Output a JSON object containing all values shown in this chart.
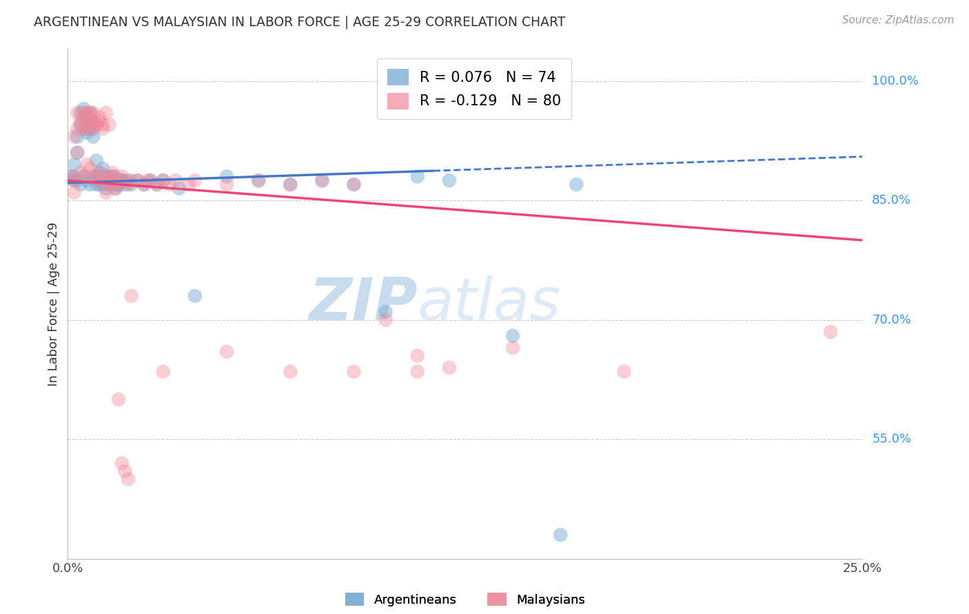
{
  "title": "ARGENTINEAN VS MALAYSIAN IN LABOR FORCE | AGE 25-29 CORRELATION CHART",
  "source": "Source: ZipAtlas.com",
  "ylabel": "In Labor Force | Age 25-29",
  "xlim": [
    0.0,
    0.25
  ],
  "ylim": [
    0.4,
    1.04
  ],
  "yticks": [
    0.55,
    0.7,
    0.85,
    1.0
  ],
  "ytick_labels": [
    "55.0%",
    "70.0%",
    "85.0%",
    "100.0%"
  ],
  "blue_R": 0.076,
  "blue_N": 74,
  "pink_R": -0.129,
  "pink_N": 80,
  "blue_color": "#7BAFD4",
  "pink_color": "#F08898",
  "blue_line_color": "#4477CC",
  "pink_line_color": "#EE4477",
  "bg_color": "#FFFFFF",
  "grid_color": "#BBBBBB",
  "title_color": "#333333",
  "source_color": "#999999",
  "ytick_color": "#3399FF",
  "blue_line_y0": 0.872,
  "blue_line_y1": 0.905,
  "pink_line_y0": 0.875,
  "pink_line_y1": 0.8,
  "blue_x": [
    0.001,
    0.002,
    0.002,
    0.003,
    0.003,
    0.004,
    0.004,
    0.005,
    0.005,
    0.005,
    0.006,
    0.006,
    0.006,
    0.007,
    0.007,
    0.007,
    0.008,
    0.008,
    0.008,
    0.009,
    0.009,
    0.009,
    0.01,
    0.01,
    0.011,
    0.011,
    0.012,
    0.012,
    0.013,
    0.013,
    0.014,
    0.014,
    0.015,
    0.015,
    0.016,
    0.016,
    0.017,
    0.018,
    0.019,
    0.02,
    0.022,
    0.024,
    0.026,
    0.028,
    0.03,
    0.035,
    0.04,
    0.05,
    0.06,
    0.07,
    0.08,
    0.09,
    0.1,
    0.11,
    0.12,
    0.14,
    0.16,
    0.002,
    0.003,
    0.004,
    0.005,
    0.006,
    0.007,
    0.008,
    0.009,
    0.01,
    0.011,
    0.012,
    0.013,
    0.014,
    0.015,
    0.016,
    0.017,
    0.155
  ],
  "blue_y": [
    0.88,
    0.895,
    0.875,
    0.91,
    0.93,
    0.96,
    0.945,
    0.94,
    0.955,
    0.965,
    0.945,
    0.935,
    0.955,
    0.94,
    0.96,
    0.945,
    0.93,
    0.95,
    0.94,
    0.88,
    0.9,
    0.87,
    0.885,
    0.875,
    0.89,
    0.87,
    0.88,
    0.865,
    0.875,
    0.87,
    0.88,
    0.87,
    0.875,
    0.865,
    0.875,
    0.87,
    0.875,
    0.87,
    0.875,
    0.87,
    0.875,
    0.87,
    0.875,
    0.87,
    0.875,
    0.865,
    0.73,
    0.88,
    0.875,
    0.87,
    0.875,
    0.87,
    0.71,
    0.88,
    0.875,
    0.68,
    0.87,
    0.88,
    0.875,
    0.87,
    0.88,
    0.875,
    0.87,
    0.88,
    0.875,
    0.87,
    0.88,
    0.875,
    0.87,
    0.88,
    0.875,
    0.87,
    0.875,
    0.43
  ],
  "pink_x": [
    0.001,
    0.002,
    0.002,
    0.003,
    0.003,
    0.004,
    0.004,
    0.005,
    0.005,
    0.006,
    0.006,
    0.006,
    0.007,
    0.007,
    0.007,
    0.008,
    0.008,
    0.009,
    0.009,
    0.01,
    0.01,
    0.011,
    0.011,
    0.012,
    0.012,
    0.013,
    0.013,
    0.014,
    0.014,
    0.015,
    0.015,
    0.016,
    0.016,
    0.017,
    0.018,
    0.019,
    0.02,
    0.022,
    0.024,
    0.026,
    0.028,
    0.03,
    0.032,
    0.034,
    0.038,
    0.04,
    0.05,
    0.06,
    0.07,
    0.08,
    0.09,
    0.1,
    0.11,
    0.12,
    0.14,
    0.175,
    0.24,
    0.002,
    0.003,
    0.004,
    0.005,
    0.006,
    0.007,
    0.008,
    0.009,
    0.01,
    0.011,
    0.012,
    0.013,
    0.016,
    0.017,
    0.018,
    0.019,
    0.02,
    0.025,
    0.03,
    0.05,
    0.07,
    0.09,
    0.11
  ],
  "pink_y": [
    0.88,
    0.875,
    0.86,
    0.91,
    0.96,
    0.885,
    0.945,
    0.88,
    0.955,
    0.895,
    0.94,
    0.96,
    0.89,
    0.94,
    0.96,
    0.88,
    0.95,
    0.875,
    0.945,
    0.885,
    0.955,
    0.875,
    0.94,
    0.88,
    0.86,
    0.875,
    0.87,
    0.885,
    0.875,
    0.88,
    0.865,
    0.875,
    0.87,
    0.88,
    0.875,
    0.87,
    0.875,
    0.875,
    0.87,
    0.875,
    0.87,
    0.875,
    0.87,
    0.875,
    0.87,
    0.875,
    0.87,
    0.875,
    0.87,
    0.875,
    0.87,
    0.7,
    0.655,
    0.64,
    0.665,
    0.635,
    0.685,
    0.93,
    0.94,
    0.95,
    0.96,
    0.94,
    0.95,
    0.96,
    0.945,
    0.95,
    0.945,
    0.96,
    0.945,
    0.6,
    0.52,
    0.51,
    0.5,
    0.73,
    0.875,
    0.635,
    0.66,
    0.635,
    0.635,
    0.635
  ]
}
